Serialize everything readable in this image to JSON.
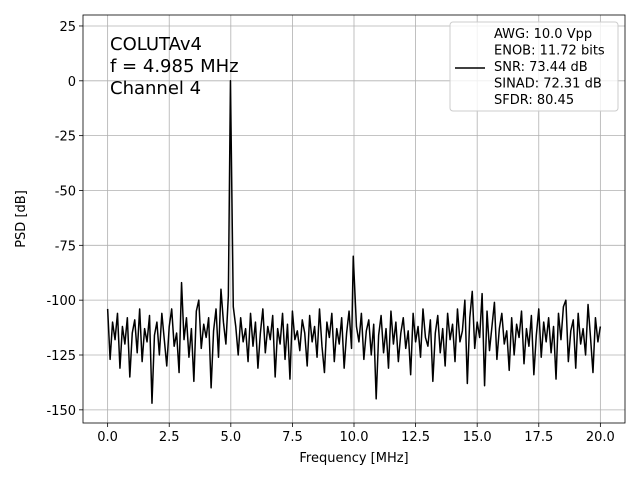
{
  "chart_data": {
    "type": "line",
    "annotations": [
      "COLUTAv4",
      "f = 4.985 MHz",
      "Channel 4"
    ],
    "xlabel": "Frequency [MHz]",
    "ylabel": "PSD [dB]",
    "xlim": [
      -1,
      21
    ],
    "ylim": [
      -156,
      30
    ],
    "xticks": [
      {
        "value": 0,
        "label": "0.0"
      },
      {
        "value": 2.5,
        "label": "2.5"
      },
      {
        "value": 5,
        "label": "5.0"
      },
      {
        "value": 7.5,
        "label": "7.5"
      },
      {
        "value": 10,
        "label": "10.0"
      },
      {
        "value": 12.5,
        "label": "12.5"
      },
      {
        "value": 15,
        "label": "15.0"
      },
      {
        "value": 17.5,
        "label": "17.5"
      },
      {
        "value": 20,
        "label": "20.0"
      }
    ],
    "yticks": [
      -150,
      -125,
      -100,
      -75,
      -50,
      -25,
      0,
      25
    ],
    "grid": true,
    "legend": "upper right",
    "x": [
      0,
      0.1,
      0.2,
      0.3,
      0.4,
      0.5,
      0.6,
      0.7,
      0.8,
      0.9,
      1,
      1.1,
      1.2,
      1.3,
      1.4,
      1.5,
      1.6,
      1.7,
      1.8,
      1.9,
      2,
      2.1,
      2.2,
      2.3,
      2.4,
      2.5,
      2.6,
      2.7,
      2.8,
      2.9,
      3,
      3.1,
      3.2,
      3.3,
      3.4,
      3.5,
      3.6,
      3.7,
      3.8,
      3.9,
      4,
      4.1,
      4.2,
      4.3,
      4.4,
      4.5,
      4.6,
      4.7,
      4.8,
      4.9,
      4.985,
      5.1,
      5.2,
      5.3,
      5.4,
      5.5,
      5.6,
      5.7,
      5.8,
      5.9,
      6,
      6.1,
      6.2,
      6.3,
      6.4,
      6.5,
      6.6,
      6.7,
      6.8,
      6.9,
      7,
      7.1,
      7.2,
      7.3,
      7.4,
      7.5,
      7.6,
      7.7,
      7.8,
      7.9,
      8,
      8.1,
      8.2,
      8.3,
      8.4,
      8.5,
      8.6,
      8.7,
      8.8,
      8.9,
      9,
      9.1,
      9.2,
      9.3,
      9.4,
      9.5,
      9.6,
      9.7,
      9.8,
      9.9,
      9.97,
      10.1,
      10.2,
      10.3,
      10.4,
      10.5,
      10.6,
      10.7,
      10.8,
      10.9,
      11,
      11.1,
      11.2,
      11.3,
      11.4,
      11.5,
      11.6,
      11.7,
      11.8,
      11.9,
      12,
      12.1,
      12.2,
      12.3,
      12.4,
      12.5,
      12.6,
      12.7,
      12.8,
      12.9,
      13,
      13.1,
      13.2,
      13.3,
      13.4,
      13.5,
      13.6,
      13.7,
      13.8,
      13.9,
      14,
      14.1,
      14.2,
      14.3,
      14.4,
      14.5,
      14.6,
      14.7,
      14.8,
      14.9,
      15,
      15.1,
      15.2,
      15.3,
      15.4,
      15.5,
      15.6,
      15.7,
      15.8,
      15.9,
      16,
      16.1,
      16.2,
      16.3,
      16.4,
      16.5,
      16.6,
      16.7,
      16.8,
      16.9,
      17,
      17.1,
      17.2,
      17.3,
      17.4,
      17.5,
      17.6,
      17.7,
      17.8,
      17.9,
      18,
      18.1,
      18.2,
      18.3,
      18.4,
      18.5,
      18.6,
      18.7,
      18.8,
      18.9,
      19,
      19.1,
      19.2,
      19.3,
      19.4,
      19.5,
      19.6,
      19.7,
      19.8,
      19.9,
      20
    ],
    "series": [
      {
        "name": "AWG: 10.0 Vpp\nENOB: 11.72 bits\nSNR: 73.44 dB\nSINAD: 72.31 dB\nSFDR: 80.45",
        "color": "#000000",
        "values": [
          -104,
          -127,
          -110,
          -118,
          -106,
          -131,
          -112,
          -120,
          -108,
          -135,
          -115,
          -109,
          -124,
          -104,
          -128,
          -113,
          -119,
          -107,
          -147,
          -116,
          -110,
          -125,
          -106,
          -118,
          -130,
          -112,
          -104,
          -121,
          -115,
          -133,
          -92,
          -118,
          -108,
          -126,
          -113,
          -137,
          -105,
          -100,
          -122,
          -111,
          -117,
          -108,
          -140,
          -114,
          -104,
          -126,
          -95,
          -110,
          -120,
          -98,
          0,
          -103,
          -112,
          -125,
          -108,
          -119,
          -113,
          -128,
          -106,
          -121,
          -110,
          -131,
          -115,
          -104,
          -124,
          -112,
          -118,
          -107,
          -135,
          -113,
          -120,
          -106,
          -127,
          -111,
          -136,
          -105,
          -118,
          -114,
          -123,
          -109,
          -115,
          -130,
          -107,
          -119,
          -112,
          -126,
          -104,
          -121,
          -133,
          -110,
          -117,
          -106,
          -128,
          -113,
          -120,
          -108,
          -131,
          -115,
          -105,
          -122,
          -80,
          -112,
          -119,
          -106,
          -127,
          -114,
          -109,
          -125,
          -111,
          -145,
          -116,
          -107,
          -124,
          -113,
          -131,
          -105,
          -120,
          -110,
          -128,
          -115,
          -108,
          -122,
          -114,
          -134,
          -106,
          -119,
          -112,
          -126,
          -104,
          -117,
          -121,
          -109,
          -137,
          -115,
          -107,
          -124,
          -113,
          -130,
          -106,
          -118,
          -111,
          -128,
          -104,
          -119,
          -114,
          -100,
          -138,
          -108,
          -96,
          -122,
          -110,
          -117,
          -97,
          -139,
          -105,
          -123,
          -112,
          -101,
          -127,
          -113,
          -106,
          -120,
          -114,
          -132,
          -108,
          -125,
          -111,
          -117,
          -105,
          -129,
          -113,
          -121,
          -107,
          -134,
          -116,
          -104,
          -126,
          -110,
          -119,
          -108,
          -124,
          -112,
          -136,
          -106,
          -118,
          -103,
          -100,
          -128,
          -114,
          -109,
          -131,
          -106,
          -120,
          -113,
          -125,
          -102,
          -117,
          -133,
          -108,
          -119,
          -112
        ]
      }
    ]
  }
}
